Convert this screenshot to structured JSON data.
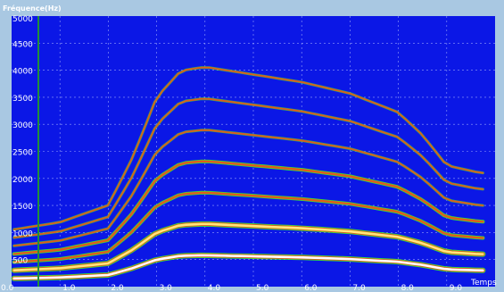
{
  "plot": {
    "ylabel": "Fréquence(Hz)",
    "xlabel": "Temps",
    "colors": {
      "background": "#0b17e6",
      "grid": "#b9c4ff",
      "frame": "#a9c8e2",
      "harmonic_green": "#38e038",
      "harmonic_orange": "#e05a1c",
      "harmonic_yellow": "#ffe97a",
      "harmonic_white": "#ffffff",
      "cursor_line": "#1f8f3a"
    }
  },
  "chart_data": {
    "type": "heatmap",
    "ylabel": "Fréquence(Hz)",
    "xlabel": "Temps",
    "xlim": [
      0.0,
      10.0
    ],
    "ylim": [
      0,
      5000
    ],
    "x_ticks": [
      "0.0",
      "1.0",
      "2.0",
      "3.0",
      "4.0",
      "5.0",
      "6.0",
      "7.0",
      "8.0",
      "9.0"
    ],
    "y_ticks": [
      "5000",
      "4500",
      "4000",
      "3500",
      "3000",
      "2500",
      "2000",
      "1500",
      "1000",
      "500"
    ],
    "grid": true,
    "harmonic_count": 7,
    "fundamental_contour": {
      "t": [
        0.0,
        1.0,
        2.0,
        2.5,
        3.0,
        3.5,
        4.0,
        5.0,
        6.0,
        7.0,
        8.0,
        8.5,
        9.0,
        9.7
      ],
      "f0": [
        150,
        170,
        215,
        340,
        500,
        570,
        580,
        560,
        540,
        510,
        460,
        400,
        320,
        300
      ]
    }
  }
}
